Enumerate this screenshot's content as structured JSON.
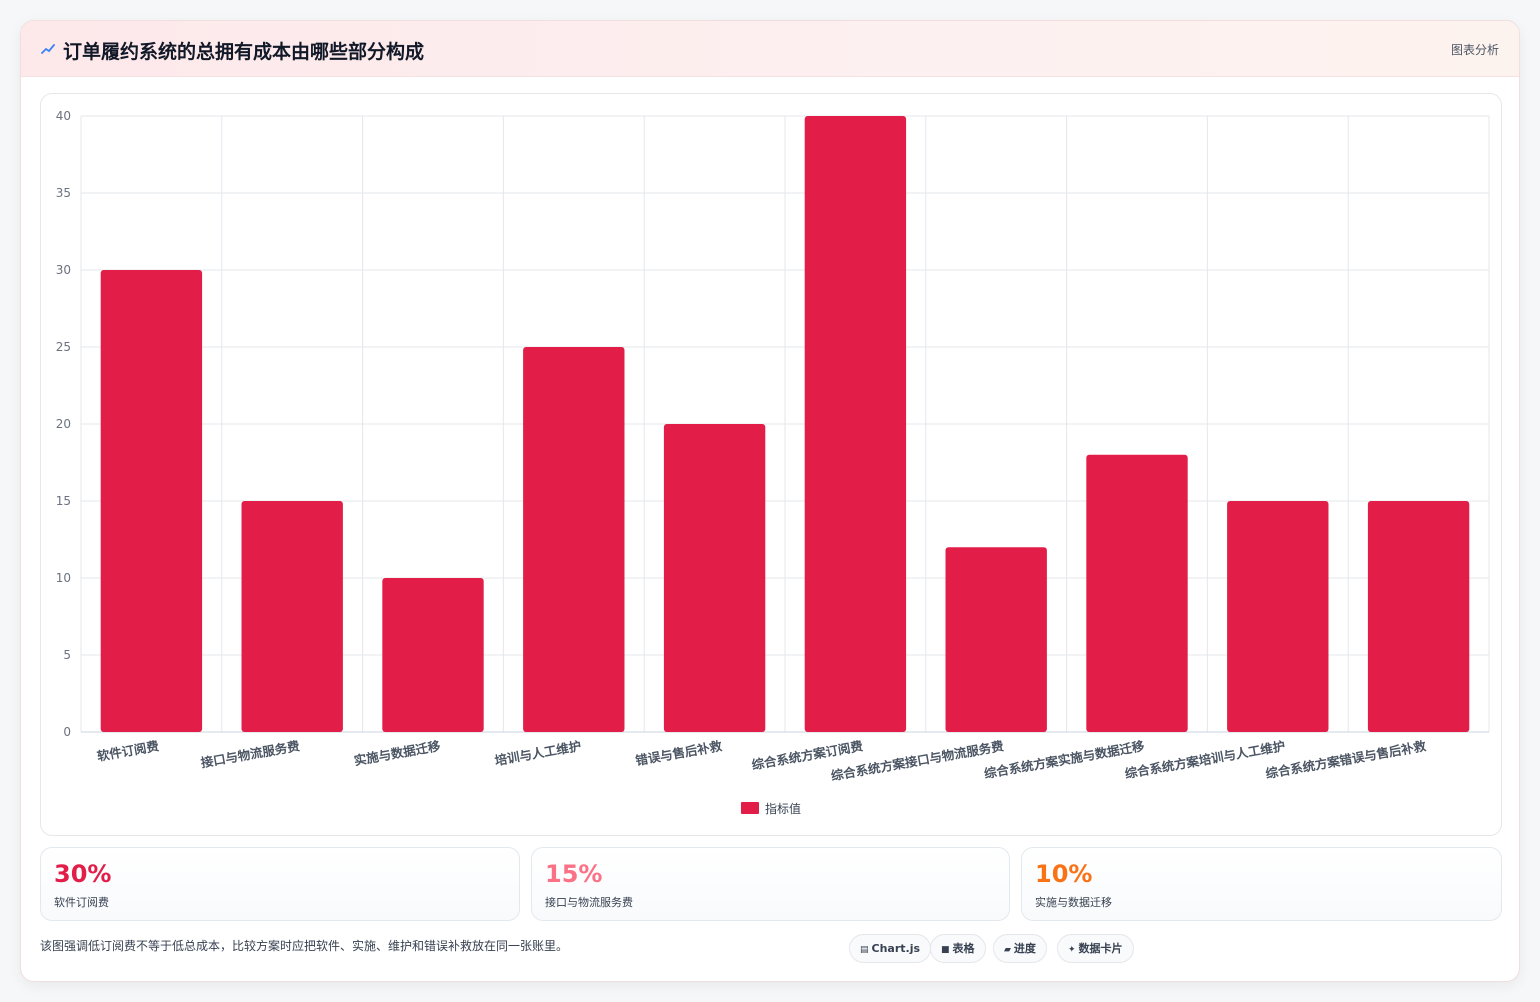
{
  "header": {
    "title": "订单履约系统的总拥有成本由哪些部分构成",
    "tag": "图表分析"
  },
  "chart_data": {
    "type": "bar",
    "categories": [
      "软件订阅费",
      "接口与物流服务费",
      "实施与数据迁移",
      "培训与人工维护",
      "错误与售后补救",
      "综合系统方案订阅费",
      "综合系统方案接口与物流服务费",
      "综合系统方案实施与数据迁移",
      "综合系统方案培训与人工维护",
      "综合系统方案错误与售后补救"
    ],
    "series": [
      {
        "name": "指标值",
        "values": [
          30,
          15,
          10,
          25,
          20,
          40,
          12,
          18,
          15,
          15
        ]
      }
    ],
    "ylim": [
      0,
      40
    ],
    "yticks": [
      0,
      5,
      10,
      15,
      20,
      25,
      30,
      35,
      40
    ],
    "grid": true,
    "legend": "bottom",
    "colors": {
      "bar": "#e11d48"
    }
  },
  "stats": [
    {
      "value": "30%",
      "label": "软件订阅费",
      "color": "#e11d48"
    },
    {
      "value": "15%",
      "label": "接口与物流服务费",
      "color": "#fb7185"
    },
    {
      "value": "10%",
      "label": "实施与数据迁移",
      "color": "#f97316"
    }
  ],
  "note": "该图强调低订阅费不等于低总成本，比较方案时应把软件、实施、维护和错误补救放在同一张账里。",
  "chips": [
    {
      "icon": "chart-icon",
      "glyph": "▤",
      "label": "Chart.js"
    },
    {
      "icon": "table-icon",
      "glyph": "■",
      "label": "表格"
    },
    {
      "icon": "progress-icon",
      "glyph": "▰",
      "label": "进度"
    },
    {
      "icon": "sparkle-icon",
      "glyph": "✦",
      "label": "数据卡片"
    }
  ]
}
